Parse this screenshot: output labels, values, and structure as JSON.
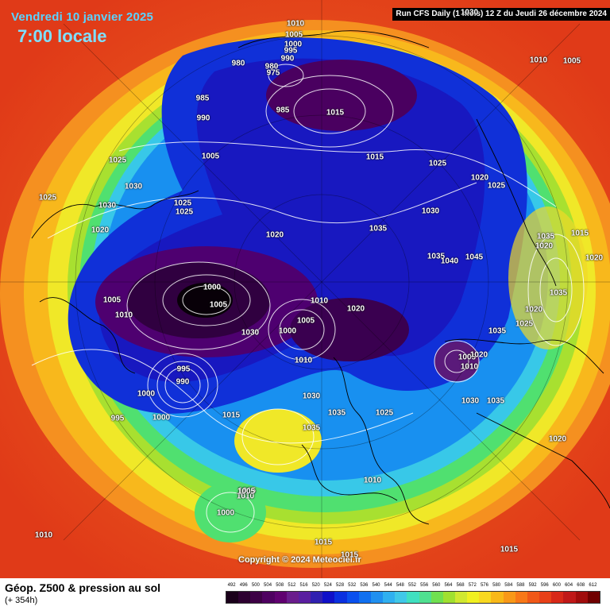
{
  "header": {
    "valid_date": "Vendredi 10 janvier 2025",
    "local_time": "7:00 locale",
    "run_info": "Run CFS Daily (1 mois) 12 Z du Jeudi 26 décembre 2024",
    "copyright": "Copyright © 2024 Meteociel.fr"
  },
  "footer": {
    "title": "Géop. Z500 & pression au sol",
    "lead_time": "(+ 354h)"
  },
  "legend": {
    "ticks": [
      "492",
      "496",
      "500",
      "504",
      "508",
      "512",
      "516",
      "520",
      "524",
      "528",
      "532",
      "536",
      "540",
      "544",
      "548",
      "552",
      "556",
      "560",
      "564",
      "568",
      "572",
      "576",
      "580",
      "584",
      "588",
      "592",
      "596",
      "600",
      "604",
      "608",
      "612"
    ],
    "colors": [
      "#1a001a",
      "#2d0030",
      "#3d0045",
      "#4e0060",
      "#600070",
      "#6a1c8c",
      "#5a1ea0",
      "#3020b0",
      "#1010c8",
      "#0a30e0",
      "#0a50ee",
      "#1070f0",
      "#2090f0",
      "#30b0f0",
      "#40c8e8",
      "#40e0c0",
      "#50e090",
      "#70e050",
      "#a0e030",
      "#d0e830",
      "#f0f020",
      "#f8d820",
      "#f8b818",
      "#f89818",
      "#f87818",
      "#f05818",
      "#e84018",
      "#d82818",
      "#c01818",
      "#a00c0c",
      "#700000"
    ]
  },
  "pressure_labels": [
    {
      "text": "1010"
    },
    {
      "text": "1005"
    },
    {
      "text": "1000"
    },
    {
      "text": "995"
    },
    {
      "text": "990"
    },
    {
      "text": "980"
    },
    {
      "text": "975"
    },
    {
      "text": "980"
    },
    {
      "text": "985"
    },
    {
      "text": "990"
    },
    {
      "text": "985"
    },
    {
      "text": "1015"
    },
    {
      "text": "1010"
    },
    {
      "text": "1005"
    },
    {
      "text": "1025"
    },
    {
      "text": "1030"
    },
    {
      "text": "1025"
    },
    {
      "text": "1030"
    },
    {
      "text": "1020"
    },
    {
      "text": "1025"
    },
    {
      "text": "1005"
    },
    {
      "text": "1025"
    },
    {
      "text": "1030"
    },
    {
      "text": "1015"
    },
    {
      "text": "1025"
    },
    {
      "text": "1020"
    },
    {
      "text": "1025"
    },
    {
      "text": "1030"
    },
    {
      "text": "1035"
    },
    {
      "text": "1020"
    },
    {
      "text": "1035"
    },
    {
      "text": "1040"
    },
    {
      "text": "1045"
    },
    {
      "text": "1035"
    },
    {
      "text": "1015"
    },
    {
      "text": "1020"
    },
    {
      "text": "1020"
    },
    {
      "text": "1000"
    },
    {
      "text": "1005"
    },
    {
      "text": "1005"
    },
    {
      "text": "1010"
    },
    {
      "text": "1010"
    },
    {
      "text": "1030"
    },
    {
      "text": "1010"
    },
    {
      "text": "1000"
    },
    {
      "text": "1005"
    },
    {
      "text": "1020"
    },
    {
      "text": "1035"
    },
    {
      "text": "1020"
    },
    {
      "text": "1025"
    },
    {
      "text": "1035"
    },
    {
      "text": "1010"
    },
    {
      "text": "1005"
    },
    {
      "text": "995"
    },
    {
      "text": "990"
    },
    {
      "text": "1000"
    },
    {
      "text": "1000"
    },
    {
      "text": "995"
    },
    {
      "text": "1015"
    },
    {
      "text": "1030"
    },
    {
      "text": "1035"
    },
    {
      "text": "1025"
    },
    {
      "text": "1035"
    },
    {
      "text": "1020"
    },
    {
      "text": "1030"
    },
    {
      "text": "1035"
    },
    {
      "text": "1020"
    },
    {
      "text": "1010"
    },
    {
      "text": "1015"
    },
    {
      "text": "1010"
    },
    {
      "text": "1005"
    },
    {
      "text": "1000"
    },
    {
      "text": "1010"
    },
    {
      "text": "1015"
    },
    {
      "text": "1015"
    },
    {
      "text": "1015"
    }
  ]
}
